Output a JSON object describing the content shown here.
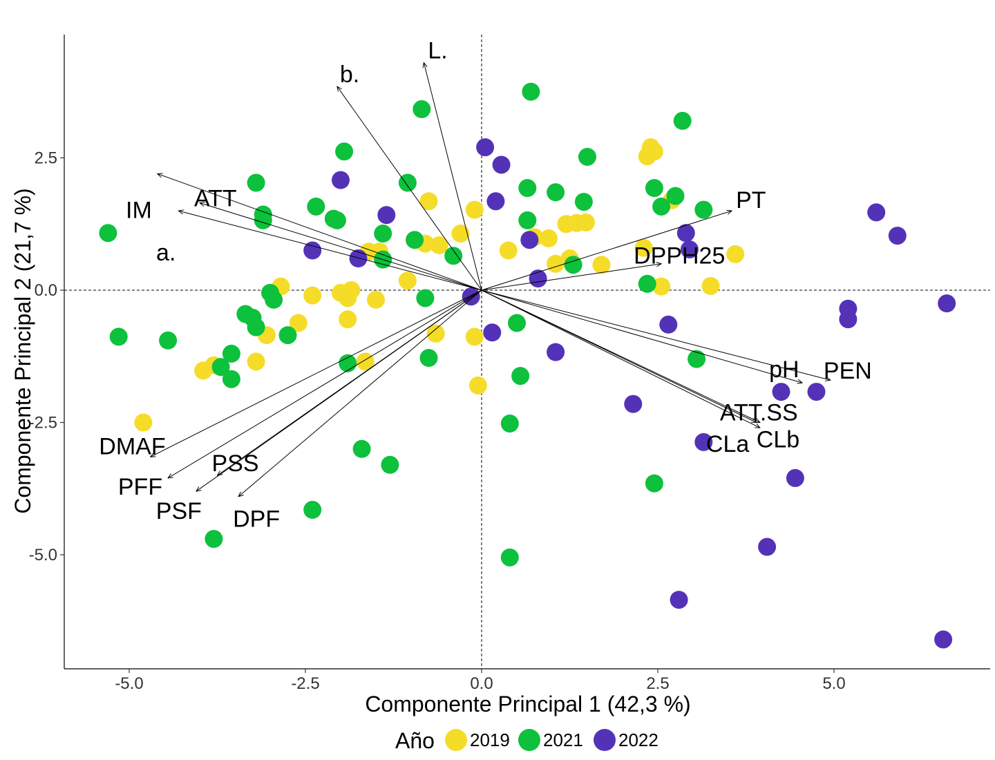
{
  "chart_data": {
    "type": "scatter",
    "subtype": "pca-biplot",
    "xlabel": "Componente Principal 1 (42,3 %)",
    "ylabel": "Componente Principal 2 (21,7 %)",
    "xlim": [
      -5.9,
      7.2
    ],
    "ylim": [
      -7.2,
      4.8
    ],
    "x_ticks": [
      -5.0,
      -2.5,
      0.0,
      2.5,
      5.0
    ],
    "x_tick_labels": [
      "-5.0",
      "-2.5",
      "0.0",
      "2.5",
      "5.0"
    ],
    "y_ticks": [
      -5.0,
      -2.5,
      0.0,
      2.5
    ],
    "y_tick_labels": [
      "-5.0",
      "-2.5",
      "0.0",
      "2.5"
    ],
    "grid": false,
    "reference_lines": {
      "x": 0,
      "y": 0,
      "style": "dashed"
    },
    "legend": {
      "title": "Año",
      "position": "bottom",
      "entries": [
        "2019",
        "2021",
        "2022"
      ]
    },
    "series": [
      {
        "name": "2019",
        "color": "#F5DC28",
        "points": [
          [
            2.35,
            2.53
          ],
          [
            2.45,
            2.62
          ],
          [
            2.4,
            2.7
          ],
          [
            2.7,
            1.7
          ],
          [
            3.6,
            0.68
          ],
          [
            3.25,
            0.08
          ],
          [
            2.55,
            0.07
          ],
          [
            2.3,
            0.8
          ],
          [
            1.7,
            0.48
          ],
          [
            1.25,
            0.6
          ],
          [
            1.05,
            0.5
          ],
          [
            1.2,
            1.25
          ],
          [
            1.35,
            1.27
          ],
          [
            1.48,
            1.28
          ],
          [
            0.95,
            0.98
          ],
          [
            0.75,
            1.0
          ],
          [
            0.38,
            0.75
          ],
          [
            -0.1,
            1.52
          ],
          [
            -0.3,
            1.07
          ],
          [
            -0.75,
            1.68
          ],
          [
            -0.6,
            0.85
          ],
          [
            -0.8,
            0.88
          ],
          [
            -1.45,
            0.73
          ],
          [
            -1.6,
            0.73
          ],
          [
            -1.05,
            0.18
          ],
          [
            -1.5,
            -0.18
          ],
          [
            -1.85,
            0.0
          ],
          [
            -2.0,
            -0.05
          ],
          [
            -2.4,
            -0.1
          ],
          [
            -1.9,
            -0.15
          ],
          [
            -1.9,
            -0.55
          ],
          [
            -2.6,
            -0.62
          ],
          [
            -2.85,
            0.07
          ],
          [
            -3.05,
            -0.85
          ],
          [
            -3.2,
            -1.35
          ],
          [
            -3.8,
            -1.42
          ],
          [
            -3.95,
            -1.52
          ],
          [
            -4.8,
            -2.5
          ],
          [
            -1.65,
            -1.35
          ],
          [
            -0.65,
            -0.82
          ],
          [
            -0.1,
            -0.88
          ],
          [
            -0.05,
            -1.8
          ]
        ]
      },
      {
        "name": "2021",
        "color": "#0DC13C",
        "points": [
          [
            0.7,
            3.75
          ],
          [
            2.85,
            3.2
          ],
          [
            -0.85,
            3.42
          ],
          [
            -1.95,
            2.62
          ],
          [
            1.5,
            2.52
          ],
          [
            -1.05,
            2.03
          ],
          [
            0.65,
            1.93
          ],
          [
            1.05,
            1.85
          ],
          [
            -3.2,
            2.03
          ],
          [
            2.45,
            1.93
          ],
          [
            2.75,
            1.78
          ],
          [
            2.55,
            1.58
          ],
          [
            3.15,
            1.52
          ],
          [
            1.45,
            1.67
          ],
          [
            0.65,
            1.32
          ],
          [
            -2.35,
            1.58
          ],
          [
            -2.1,
            1.35
          ],
          [
            -2.05,
            1.32
          ],
          [
            -3.1,
            1.43
          ],
          [
            -3.1,
            1.32
          ],
          [
            -1.4,
            1.07
          ],
          [
            -0.95,
            0.95
          ],
          [
            -0.4,
            0.65
          ],
          [
            -1.4,
            0.58
          ],
          [
            1.3,
            0.48
          ],
          [
            2.35,
            0.12
          ],
          [
            -5.3,
            1.08
          ],
          [
            -0.8,
            -0.15
          ],
          [
            -3.0,
            -0.05
          ],
          [
            -2.95,
            -0.18
          ],
          [
            -3.35,
            -0.45
          ],
          [
            -3.25,
            -0.52
          ],
          [
            -3.2,
            -0.7
          ],
          [
            -2.75,
            -0.85
          ],
          [
            -5.15,
            -0.88
          ],
          [
            -4.45,
            -0.95
          ],
          [
            -3.55,
            -1.2
          ],
          [
            -3.7,
            -1.45
          ],
          [
            -3.55,
            -1.68
          ],
          [
            -1.9,
            -1.38
          ],
          [
            -0.75,
            -1.28
          ],
          [
            0.5,
            -0.62
          ],
          [
            0.55,
            -1.62
          ],
          [
            3.05,
            -1.3
          ],
          [
            0.4,
            -2.52
          ],
          [
            -1.7,
            -3.0
          ],
          [
            -1.3,
            -3.3
          ],
          [
            2.45,
            -3.65
          ],
          [
            -2.4,
            -4.15
          ],
          [
            -3.8,
            -4.7
          ],
          [
            0.4,
            -5.05
          ]
        ]
      },
      {
        "name": "2022",
        "color": "#5432B8",
        "points": [
          [
            0.05,
            2.7
          ],
          [
            0.28,
            2.37
          ],
          [
            -2.0,
            2.08
          ],
          [
            0.2,
            1.68
          ],
          [
            -1.35,
            1.42
          ],
          [
            0.68,
            0.95
          ],
          [
            -2.4,
            0.75
          ],
          [
            -1.75,
            0.6
          ],
          [
            2.9,
            1.08
          ],
          [
            2.95,
            0.77
          ],
          [
            0.8,
            0.22
          ],
          [
            -0.15,
            -0.12
          ],
          [
            0.15,
            -0.8
          ],
          [
            1.05,
            -1.17
          ],
          [
            2.65,
            -0.65
          ],
          [
            5.6,
            1.47
          ],
          [
            5.9,
            1.03
          ],
          [
            6.6,
            -0.25
          ],
          [
            5.2,
            -0.35
          ],
          [
            5.2,
            -0.55
          ],
          [
            4.25,
            -1.92
          ],
          [
            4.75,
            -1.92
          ],
          [
            2.15,
            -2.15
          ],
          [
            3.15,
            -2.87
          ],
          [
            4.45,
            -3.55
          ],
          [
            4.05,
            -4.85
          ],
          [
            2.8,
            -5.85
          ],
          [
            6.55,
            -6.6
          ]
        ]
      }
    ],
    "loading_vectors": [
      {
        "name": "L.",
        "x": -0.82,
        "y": 4.3
      },
      {
        "name": "b.",
        "x": -2.05,
        "y": 3.85
      },
      {
        "name": "IM",
        "x": -4.6,
        "y": 2.2
      },
      {
        "name": "ATT",
        "x": -4.0,
        "y": 1.65
      },
      {
        "name": "a.",
        "x": -4.3,
        "y": 1.5
      },
      {
        "name": "PT",
        "x": 3.55,
        "y": 1.5
      },
      {
        "name": "DPPH25",
        "x": 2.55,
        "y": 0.5
      },
      {
        "name": "pH",
        "x": 4.55,
        "y": -1.75
      },
      {
        "name": "PEN",
        "x": 4.95,
        "y": -1.7
      },
      {
        "name": "ATT.SS",
        "x": 3.95,
        "y": -2.5
      },
      {
        "name": "CLa",
        "x": 3.95,
        "y": -2.6
      },
      {
        "name": "CLb",
        "x": 3.9,
        "y": -2.5
      },
      {
        "name": "DMAF",
        "x": -4.7,
        "y": -3.15
      },
      {
        "name": "PFF",
        "x": -4.45,
        "y": -3.55
      },
      {
        "name": "PSS",
        "x": -3.75,
        "y": -3.5
      },
      {
        "name": "PSF",
        "x": -4.05,
        "y": -3.8
      },
      {
        "name": "DPF",
        "x": -3.45,
        "y": -3.9
      }
    ]
  }
}
